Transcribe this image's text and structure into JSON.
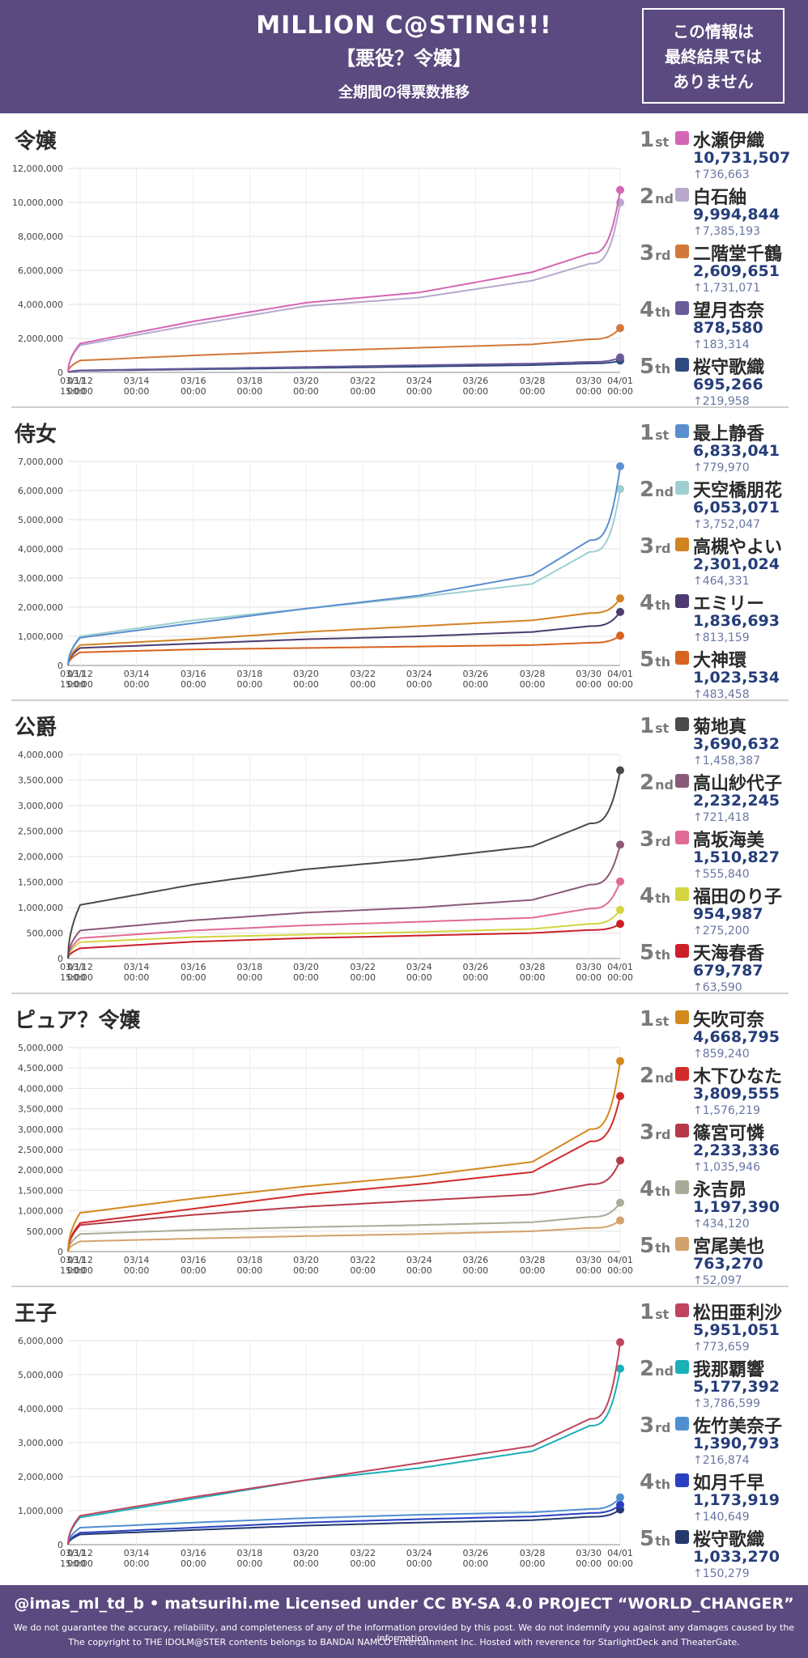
{
  "header": {
    "title": "MILLION C@STING!!!",
    "subtitle": "【悪役？令嬢】",
    "caption": "全期間の得票数推移",
    "notice_lines": [
      "この情報は",
      "最終結果では",
      "ありません"
    ]
  },
  "time_ticks": [
    "03/12\n00:00",
    "03/14\n00:00",
    "03/16\n00:00",
    "03/18\n00:00",
    "03/20\n00:00",
    "03/22\n00:00",
    "03/24\n00:00",
    "03/26\n00:00",
    "03/28\n00:00",
    "03/30\n00:00",
    "04/01\n00:00"
  ],
  "start_tick": "03/11\n15:00",
  "rank_suffixes": [
    "st",
    "nd",
    "rd",
    "th",
    "th"
  ],
  "chart_data": [
    {
      "type": "line",
      "title": "令嬢",
      "x": [
        "03/11 15:00",
        "03/12",
        "03/16",
        "03/20",
        "03/24",
        "03/28",
        "03/31",
        "04/01"
      ],
      "ylim": [
        0,
        12000000
      ],
      "yticks": [
        "0",
        "2,000,000",
        "4,000,000",
        "6,000,000",
        "8,000,000",
        "10,000,000",
        "12,000,000"
      ],
      "series": [
        {
          "name": "水瀬伊織",
          "color": "#d466b4",
          "values": [
            0,
            1700000,
            3000000,
            4100000,
            4700000,
            5900000,
            7000000,
            10731507
          ],
          "votes": "10,731,507",
          "diff": "↑736,663"
        },
        {
          "name": "白石紬",
          "color": "#b7a8cc",
          "values": [
            0,
            1600000,
            2800000,
            3900000,
            4400000,
            5400000,
            6400000,
            9994844
          ],
          "votes": "9,994,844",
          "diff": "↑7,385,193"
        },
        {
          "name": "二階堂千鶴",
          "color": "#d2783a",
          "values": [
            0,
            700000,
            1000000,
            1250000,
            1450000,
            1650000,
            1950000,
            2609651
          ],
          "votes": "2,609,651",
          "diff": "↑1,731,071"
        },
        {
          "name": "望月杏奈",
          "color": "#6a5a9a",
          "values": [
            0,
            120000,
            220000,
            320000,
            420000,
            520000,
            620000,
            878580
          ],
          "votes": "878,580",
          "diff": "↑183,314"
        },
        {
          "name": "桜守歌織",
          "color": "#2f4a7e",
          "values": [
            0,
            100000,
            180000,
            260000,
            340000,
            430000,
            530000,
            695266
          ],
          "votes": "695,266",
          "diff": "↑219,958"
        }
      ]
    },
    {
      "type": "line",
      "title": "侍女",
      "x": [
        "03/11 15:00",
        "03/12",
        "03/16",
        "03/20",
        "03/24",
        "03/28",
        "03/31",
        "04/01"
      ],
      "ylim": [
        0,
        7000000
      ],
      "yticks": [
        "0",
        "1,000,000",
        "2,000,000",
        "3,000,000",
        "4,000,000",
        "5,000,000",
        "6,000,000",
        "7,000,000"
      ],
      "series": [
        {
          "name": "最上静香",
          "color": "#5b8fd0",
          "values": [
            0,
            950000,
            1450000,
            1950000,
            2400000,
            3100000,
            4300000,
            6833041
          ],
          "votes": "6,833,041",
          "diff": "↑779,970"
        },
        {
          "name": "天空橋朋花",
          "color": "#9fcfd0",
          "values": [
            0,
            1000000,
            1550000,
            1950000,
            2350000,
            2800000,
            3900000,
            6053071
          ],
          "votes": "6,053,071",
          "diff": "↑3,752,047"
        },
        {
          "name": "高槻やよい",
          "color": "#d28322",
          "values": [
            0,
            700000,
            900000,
            1150000,
            1350000,
            1550000,
            1800000,
            2301024
          ],
          "votes": "2,301,024",
          "diff": "↑464,331"
        },
        {
          "name": "エミリー",
          "color": "#4c3a70",
          "values": [
            0,
            600000,
            750000,
            900000,
            1000000,
            1150000,
            1350000,
            1836693
          ],
          "votes": "1,836,693",
          "diff": "↑813,159"
        },
        {
          "name": "大神環",
          "color": "#d86220",
          "values": [
            0,
            450000,
            550000,
            600000,
            650000,
            700000,
            780000,
            1023534
          ],
          "votes": "1,023,534",
          "diff": "↑483,458"
        }
      ]
    },
    {
      "type": "line",
      "title": "公爵",
      "x": [
        "03/11 15:00",
        "03/12",
        "03/16",
        "03/20",
        "03/24",
        "03/28",
        "03/31",
        "04/01"
      ],
      "ylim": [
        0,
        4000000
      ],
      "yticks": [
        "0",
        "500,000",
        "1,000,000",
        "1,500,000",
        "2,000,000",
        "2,500,000",
        "3,000,000",
        "3,500,000",
        "4,000,000"
      ],
      "series": [
        {
          "name": "菊地真",
          "color": "#4a4a4a",
          "values": [
            0,
            1050000,
            1450000,
            1750000,
            1950000,
            2200000,
            2650000,
            3690632
          ],
          "votes": "3,690,632",
          "diff": "↑1,458,387"
        },
        {
          "name": "高山紗代子",
          "color": "#8a5a78",
          "values": [
            0,
            550000,
            750000,
            900000,
            1000000,
            1150000,
            1450000,
            2232245
          ],
          "votes": "2,232,245",
          "diff": "↑721,418"
        },
        {
          "name": "高坂海美",
          "color": "#e06a95",
          "values": [
            0,
            400000,
            550000,
            650000,
            720000,
            800000,
            980000,
            1510827
          ],
          "votes": "1,510,827",
          "diff": "↑555,840"
        },
        {
          "name": "福田のり子",
          "color": "#d3d440",
          "values": [
            0,
            320000,
            420000,
            470000,
            520000,
            580000,
            680000,
            954987
          ],
          "votes": "954,987",
          "diff": "↑275,200"
        },
        {
          "name": "天海春香",
          "color": "#cc1f2a",
          "values": [
            0,
            200000,
            330000,
            400000,
            450000,
            500000,
            560000,
            679787
          ],
          "votes": "679,787",
          "diff": "↑63,590"
        }
      ]
    },
    {
      "type": "line",
      "title": "ピュア？令嬢",
      "x": [
        "03/11 15:00",
        "03/12",
        "03/16",
        "03/20",
        "03/24",
        "03/28",
        "03/31",
        "04/01"
      ],
      "ylim": [
        0,
        5000000
      ],
      "yticks": [
        "0",
        "500,000",
        "1,000,000",
        "1,500,000",
        "2,000,000",
        "2,500,000",
        "3,000,000",
        "3,500,000",
        "4,000,000",
        "4,500,000",
        "5,000,000"
      ],
      "series": [
        {
          "name": "矢吹可奈",
          "color": "#d2891e",
          "values": [
            0,
            950000,
            1300000,
            1600000,
            1850000,
            2200000,
            3000000,
            4668795
          ],
          "votes": "4,668,795",
          "diff": "↑859,240"
        },
        {
          "name": "木下ひなた",
          "color": "#d22a2a",
          "values": [
            0,
            700000,
            1050000,
            1400000,
            1650000,
            1950000,
            2700000,
            3809555
          ],
          "votes": "3,809,555",
          "diff": "↑1,576,219"
        },
        {
          "name": "篠宮可憐",
          "color": "#b83a48",
          "values": [
            0,
            650000,
            900000,
            1100000,
            1250000,
            1400000,
            1650000,
            2233336
          ],
          "votes": "2,233,336",
          "diff": "↑1,035,946"
        },
        {
          "name": "永吉昴",
          "color": "#a9ab98",
          "values": [
            0,
            430000,
            530000,
            600000,
            650000,
            720000,
            850000,
            1197390
          ],
          "votes": "1,197,390",
          "diff": "↑434,120"
        },
        {
          "name": "宮尾美也",
          "color": "#d2a26c",
          "values": [
            0,
            250000,
            320000,
            380000,
            430000,
            500000,
            580000,
            763270
          ],
          "votes": "763,270",
          "diff": "↑52,097"
        }
      ]
    },
    {
      "type": "line",
      "title": "王子",
      "x": [
        "03/11 15:00",
        "03/12",
        "03/16",
        "03/20",
        "03/24",
        "03/28",
        "03/31",
        "04/01"
      ],
      "ylim": [
        0,
        6000000
      ],
      "yticks": [
        "0",
        "1,000,000",
        "2,000,000",
        "3,000,000",
        "4,000,000",
        "5,000,000",
        "6,000,000"
      ],
      "series": [
        {
          "name": "松田亜利沙",
          "color": "#c0445e",
          "values": [
            0,
            850000,
            1400000,
            1900000,
            2400000,
            2900000,
            3700000,
            5951051
          ],
          "votes": "5,951,051",
          "diff": "↑773,659"
        },
        {
          "name": "我那覇響",
          "color": "#19b0b8",
          "values": [
            0,
            800000,
            1350000,
            1900000,
            2250000,
            2750000,
            3500000,
            5177392
          ],
          "votes": "5,177,392",
          "diff": "↑3,786,599"
        },
        {
          "name": "佐竹美奈子",
          "color": "#4f8fd0",
          "values": [
            0,
            500000,
            650000,
            780000,
            880000,
            950000,
            1050000,
            1390793
          ],
          "votes": "1,390,793",
          "diff": "↑216,874"
        },
        {
          "name": "如月千早",
          "color": "#2a40c0",
          "values": [
            0,
            350000,
            500000,
            650000,
            750000,
            830000,
            930000,
            1173919
          ],
          "votes": "1,173,919",
          "diff": "↑140,649"
        },
        {
          "name": "桜守歌織",
          "color": "#24396e",
          "values": [
            0,
            300000,
            430000,
            560000,
            650000,
            720000,
            820000,
            1033270
          ],
          "votes": "1,033,270",
          "diff": "↑150,279"
        }
      ]
    }
  ],
  "footer": {
    "main": "@imas_ml_td_b • matsurihi.me   Licensed under CC BY-SA 4.0   PROJECT “WORLD_CHANGER”",
    "disclaimer": "We do not guarantee the accuracy, reliability, and completeness of any of the information provided by this post. We do not indemnify you against any damages caused by the information.",
    "copyright": "The copyright to THE IDOLM@STER contents belongs to BANDAI NAMCO Entertainment Inc. Hosted with reverence for StarlightDeck and TheaterGate."
  }
}
